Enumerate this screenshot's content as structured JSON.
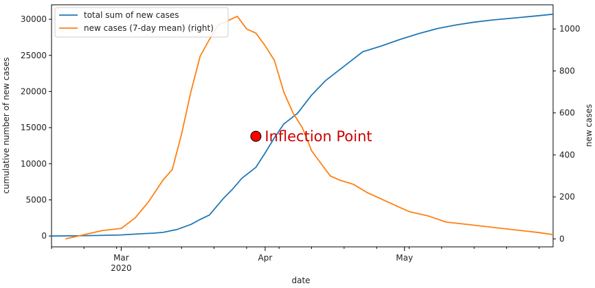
{
  "chart_data": {
    "type": "line",
    "xlabel": "date",
    "ylabel_left": "cumulative number of new cases",
    "ylabel_right": "new cases",
    "x_range": [
      "2020-02-15",
      "2020-06-02"
    ],
    "ylim_left": [
      -1500,
      32000
    ],
    "ylim_right": [
      -38,
      1115
    ],
    "yticks_left": [
      0,
      5000,
      10000,
      15000,
      20000,
      25000,
      30000
    ],
    "yticks_right": [
      0,
      200,
      400,
      600,
      800,
      1000
    ],
    "xticks": [
      {
        "date": "2020-03-01",
        "label": "Mar",
        "sublabel": "2020"
      },
      {
        "date": "2020-04-01",
        "label": "Apr",
        "sublabel": ""
      },
      {
        "date": "2020-05-01",
        "label": "May",
        "sublabel": ""
      }
    ],
    "grid": false,
    "legend_position": "top-left",
    "colors": {
      "total": "#1f77b4",
      "mean": "#ff7f0e",
      "marker": "#ff0000",
      "annotation": "#cc0000"
    },
    "series": [
      {
        "name": "total sum of new cases",
        "axis": "left",
        "points": [
          [
            "2020-02-15",
            0
          ],
          [
            "2020-02-20",
            30
          ],
          [
            "2020-02-25",
            80
          ],
          [
            "2020-03-01",
            150
          ],
          [
            "2020-03-05",
            300
          ],
          [
            "2020-03-08",
            400
          ],
          [
            "2020-03-10",
            500
          ],
          [
            "2020-03-13",
            900
          ],
          [
            "2020-03-16",
            1600
          ],
          [
            "2020-03-18",
            2300
          ],
          [
            "2020-03-20",
            2900
          ],
          [
            "2020-03-23",
            5200
          ],
          [
            "2020-03-25",
            6500
          ],
          [
            "2020-03-27",
            8000
          ],
          [
            "2020-03-30",
            9500
          ],
          [
            "2020-04-01",
            11500
          ],
          [
            "2020-04-03",
            13600
          ],
          [
            "2020-04-05",
            15500
          ],
          [
            "2020-04-08",
            17000
          ],
          [
            "2020-04-11",
            19500
          ],
          [
            "2020-04-14",
            21500
          ],
          [
            "2020-04-16",
            22500
          ],
          [
            "2020-04-19",
            24000
          ],
          [
            "2020-04-22",
            25500
          ],
          [
            "2020-04-26",
            26300
          ],
          [
            "2020-04-30",
            27200
          ],
          [
            "2020-05-04",
            28000
          ],
          [
            "2020-05-08",
            28700
          ],
          [
            "2020-05-12",
            29200
          ],
          [
            "2020-05-16",
            29600
          ],
          [
            "2020-05-20",
            29900
          ],
          [
            "2020-05-25",
            30200
          ],
          [
            "2020-05-30",
            30500
          ],
          [
            "2020-06-02",
            30700
          ]
        ]
      },
      {
        "name": "new cases (7-day mean) (right)",
        "axis": "right",
        "points": [
          [
            "2020-02-18",
            0
          ],
          [
            "2020-02-22",
            20
          ],
          [
            "2020-02-26",
            40
          ],
          [
            "2020-03-01",
            50
          ],
          [
            "2020-03-04",
            100
          ],
          [
            "2020-03-07",
            180
          ],
          [
            "2020-03-10",
            280
          ],
          [
            "2020-03-12",
            330
          ],
          [
            "2020-03-14",
            500
          ],
          [
            "2020-03-16",
            700
          ],
          [
            "2020-03-18",
            870
          ],
          [
            "2020-03-20",
            950
          ],
          [
            "2020-03-22",
            1020
          ],
          [
            "2020-03-24",
            1040
          ],
          [
            "2020-03-26",
            1060
          ],
          [
            "2020-03-28",
            1000
          ],
          [
            "2020-03-30",
            980
          ],
          [
            "2020-04-01",
            920
          ],
          [
            "2020-04-03",
            850
          ],
          [
            "2020-04-05",
            700
          ],
          [
            "2020-04-07",
            600
          ],
          [
            "2020-04-09",
            530
          ],
          [
            "2020-04-11",
            420
          ],
          [
            "2020-04-13",
            360
          ],
          [
            "2020-04-15",
            300
          ],
          [
            "2020-04-17",
            280
          ],
          [
            "2020-04-20",
            260
          ],
          [
            "2020-04-23",
            220
          ],
          [
            "2020-04-26",
            190
          ],
          [
            "2020-04-29",
            160
          ],
          [
            "2020-05-02",
            130
          ],
          [
            "2020-05-06",
            110
          ],
          [
            "2020-05-10",
            80
          ],
          [
            "2020-05-14",
            70
          ],
          [
            "2020-05-18",
            60
          ],
          [
            "2020-05-22",
            50
          ],
          [
            "2020-05-26",
            40
          ],
          [
            "2020-05-30",
            30
          ],
          [
            "2020-06-02",
            20
          ]
        ]
      }
    ],
    "annotation": {
      "text": "Inflection Point",
      "date": "2020-03-30",
      "value": 13800,
      "axis": "left"
    }
  }
}
